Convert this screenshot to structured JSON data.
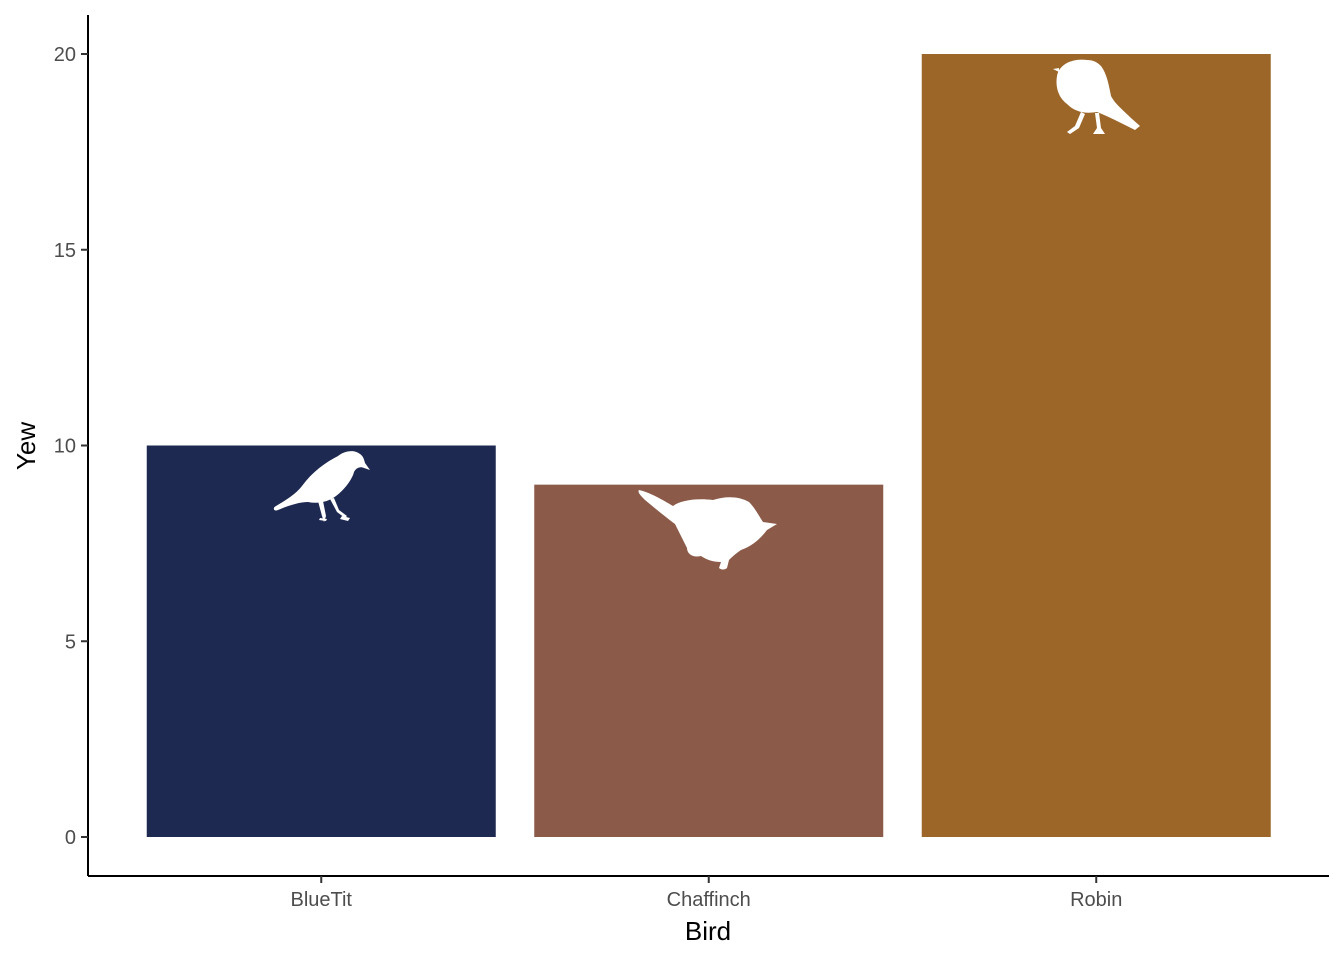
{
  "chart_data": {
    "type": "bar",
    "categories": [
      "BlueTit",
      "Chaffinch",
      "Robin"
    ],
    "values": [
      10,
      9,
      20
    ],
    "xlabel": "Bird",
    "ylabel": "Yew",
    "ylim": [
      0,
      20
    ],
    "yticks": [
      0,
      5,
      10,
      15,
      20
    ],
    "colors": [
      "#1e2951",
      "#8b5a48",
      "#9c6629"
    ],
    "icon_color": "#ffffff",
    "icons": [
      "bluetit-silhouette-icon",
      "chaffinch-silhouette-icon",
      "robin-silhouette-icon"
    ],
    "grid": false,
    "legend": "none"
  }
}
